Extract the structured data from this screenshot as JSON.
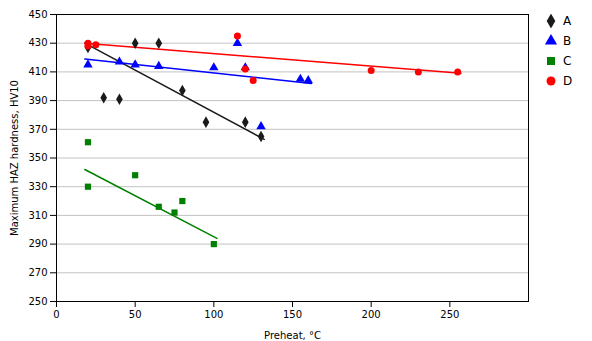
{
  "chart_data": {
    "type": "scatter",
    "xlabel": "Preheat, °C",
    "ylabel": "Maximum HAZ hardness, HV10",
    "xlim": [
      0,
      300
    ],
    "ylim": [
      250,
      450
    ],
    "xticks": [
      0,
      50,
      100,
      150,
      200,
      250
    ],
    "yticks": [
      250,
      270,
      290,
      310,
      330,
      350,
      370,
      390,
      410,
      430,
      450
    ],
    "grid": "y",
    "legend": "right",
    "series": [
      {
        "name": "A",
        "color": "#1a1a1a",
        "marker": "diamond",
        "x": [
          20,
          20,
          30,
          40,
          50,
          65,
          80,
          95,
          120,
          130
        ],
        "values": [
          428,
          427,
          392,
          391,
          430,
          430,
          397,
          375,
          375,
          365
        ],
        "trend": {
          "x": [
            18,
            132
          ],
          "values": [
            430,
            363
          ]
        }
      },
      {
        "name": "B",
        "color": "#0000ff",
        "marker": "triangle",
        "x": [
          20,
          40,
          50,
          65,
          100,
          115,
          120,
          130,
          155,
          160
        ],
        "values": [
          415,
          417,
          415,
          414,
          413,
          430,
          413,
          372,
          405,
          404
        ],
        "trend": {
          "x": [
            18,
            162
          ],
          "values": [
            419,
            402
          ]
        }
      },
      {
        "name": "C",
        "color": "#008000",
        "marker": "square",
        "x": [
          20,
          20,
          50,
          65,
          75,
          80,
          100
        ],
        "values": [
          330,
          361,
          338,
          316,
          312,
          320,
          290
        ],
        "trend": {
          "x": [
            18,
            102
          ],
          "values": [
            342,
            294
          ]
        }
      },
      {
        "name": "D",
        "color": "#ff0000",
        "marker": "circle",
        "x": [
          20,
          20,
          25,
          115,
          120,
          125,
          200,
          230,
          255
        ],
        "values": [
          428,
          430,
          429,
          435,
          412,
          404,
          411,
          410,
          410
        ],
        "trend": {
          "x": [
            18,
            257
          ],
          "values": [
            430,
            409
          ]
        }
      }
    ]
  }
}
